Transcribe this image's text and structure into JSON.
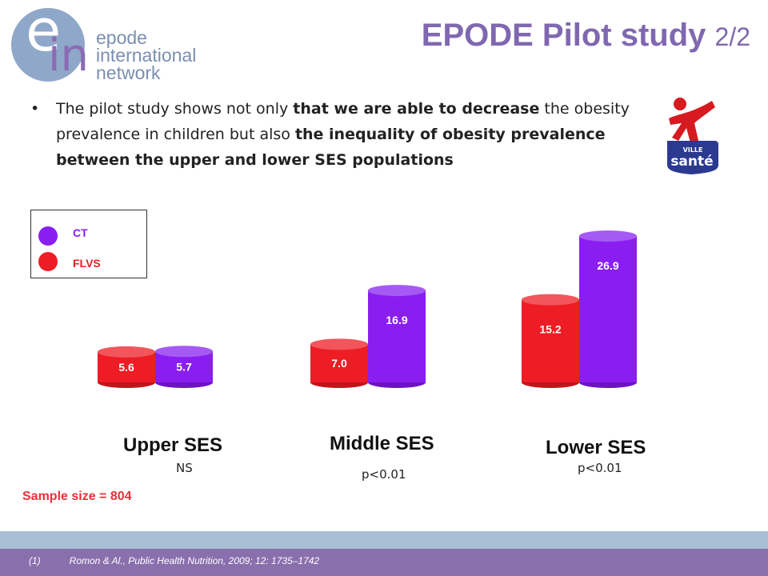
{
  "logo": {
    "letter_e": "e",
    "letters_in": "in",
    "line1": "epode",
    "line2": "international",
    "line3": "network"
  },
  "title": {
    "main": "EPODE Pilot study",
    "sub": "2/2"
  },
  "bullet": {
    "p1": "The pilot study shows not only ",
    "b1": "that we are able to decrease",
    "p2": " the obesity prevalence in children but also ",
    "b2": "the inequality of obesity prevalence between the upper and lower SES populations"
  },
  "sante_logo": {
    "top": "VILLE",
    "bottom": "santé",
    "icon": "person-icon"
  },
  "legend": [
    {
      "label": "CT",
      "color": "#8a1ef0"
    },
    {
      "label": "FLVS",
      "color": "#ee1c24"
    }
  ],
  "groups": [
    {
      "label": "Upper SES",
      "significance": "NS"
    },
    {
      "label": "Middle SES",
      "significance": "p<0.01"
    },
    {
      "label": "Lower SES",
      "significance": "p<0.01"
    }
  ],
  "chart_data": {
    "type": "bar",
    "categories": [
      "Upper SES",
      "Middle SES",
      "Lower SES"
    ],
    "series": [
      {
        "name": "FLVS",
        "color": "#ee1c24",
        "values": [
          5.6,
          7.0,
          15.2
        ]
      },
      {
        "name": "CT",
        "color": "#8a1ef0",
        "values": [
          5.7,
          16.9,
          26.9
        ]
      }
    ],
    "style": "3d-cylinder",
    "legend_position": "top-left"
  },
  "sample_size": "Sample size = 804",
  "reference": {
    "number": "(1)",
    "text": "Romon & Al., Public Health Nutrition, 2009; 12: 1735–1742"
  }
}
